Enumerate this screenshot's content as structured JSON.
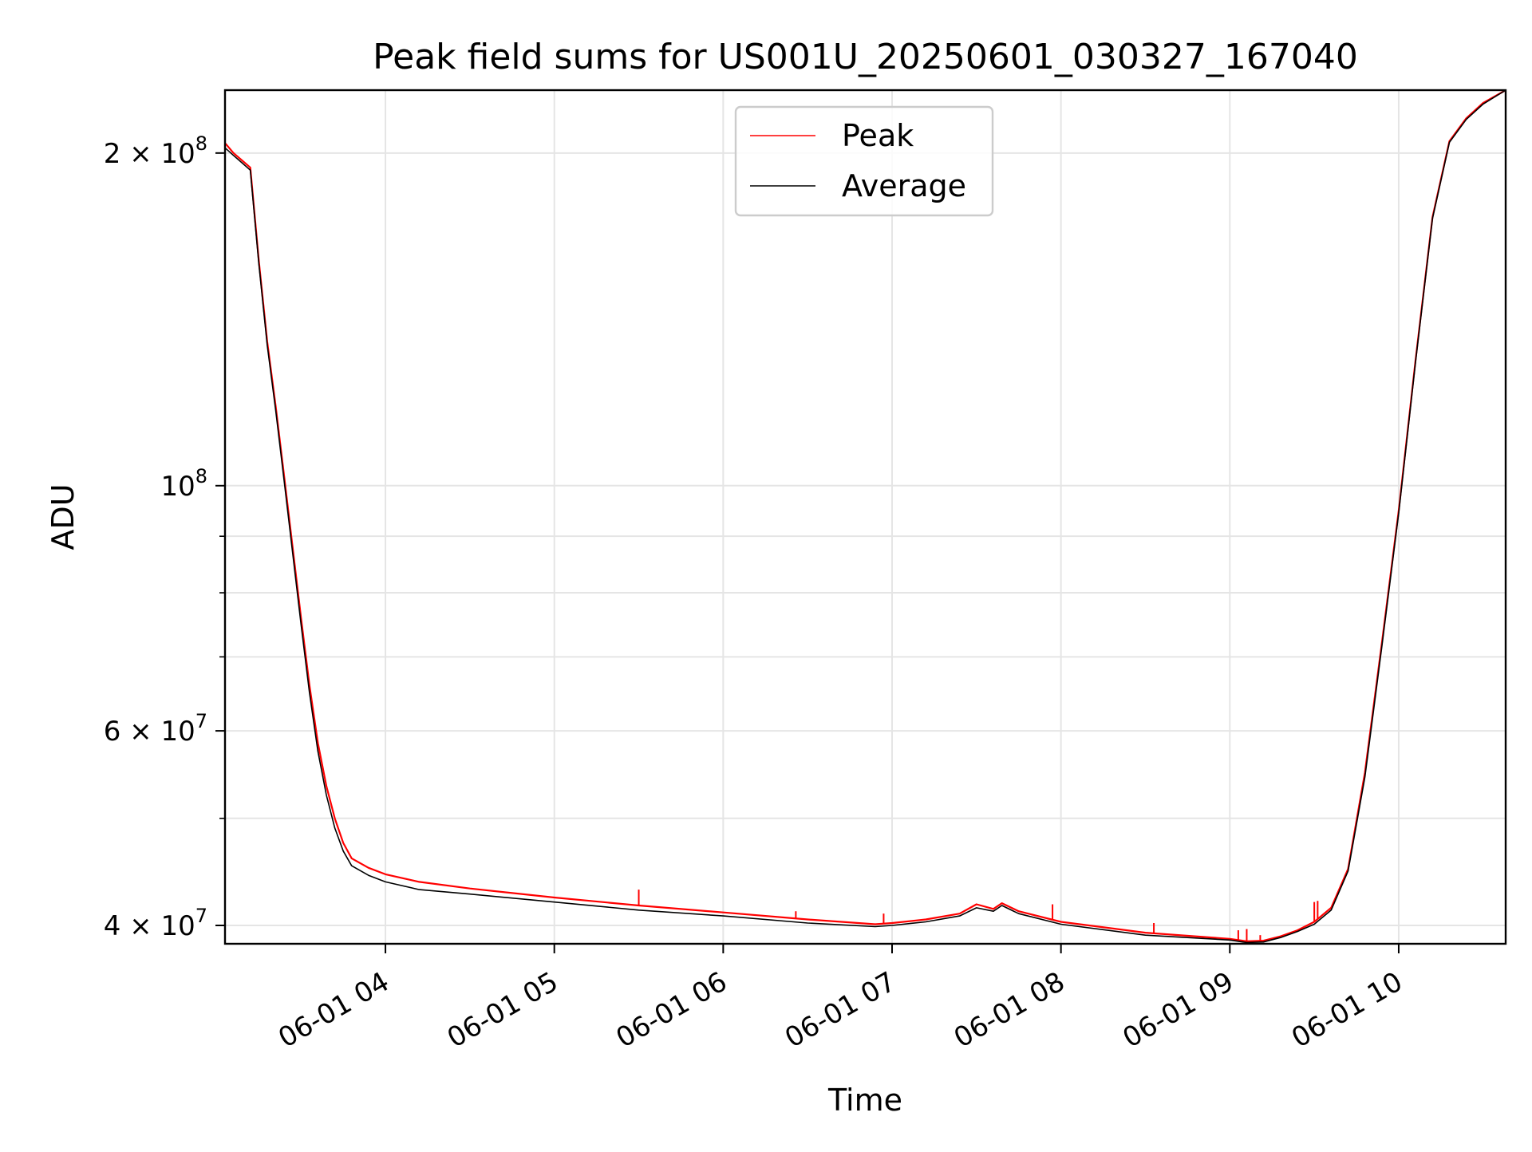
{
  "chart_data": {
    "type": "line",
    "title": "Peak field sums for US001U_20250601_030327_167040",
    "xlabel": "Time",
    "ylabel": "ADU",
    "x_axis": {
      "scale": "time",
      "unit": "hour",
      "range": [
        "2025-06-01 03:03",
        "2025-06-01 10:38"
      ],
      "ticks": [
        {
          "value": 4,
          "label": "06-01 04"
        },
        {
          "value": 5,
          "label": "06-01 05"
        },
        {
          "value": 6,
          "label": "06-01 06"
        },
        {
          "value": 7,
          "label": "06-01 07"
        },
        {
          "value": 8,
          "label": "06-01 08"
        },
        {
          "value": 9,
          "label": "06-01 09"
        },
        {
          "value": 10,
          "label": "06-01 10"
        }
      ]
    },
    "y_axis": {
      "scale": "log",
      "range": [
        38500000,
        228000000
      ],
      "major_ticks": [
        {
          "value": 40000000,
          "mant": "4 × 10",
          "exp": "7"
        },
        {
          "value": 60000000,
          "mant": "6 × 10",
          "exp": "7"
        },
        {
          "value": 100000000,
          "mant": "10",
          "exp": "8"
        },
        {
          "value": 200000000,
          "mant": "2 × 10",
          "exp": "8"
        }
      ],
      "minor_gridlines": [
        50000000,
        70000000,
        80000000,
        90000000
      ]
    },
    "grid": true,
    "legend": {
      "position": "top-center",
      "entries": [
        "Peak",
        "Average"
      ]
    },
    "series": [
      {
        "name": "Peak",
        "color": "#ff0000",
        "points": [
          [
            3.053,
            204000000
          ],
          [
            3.1,
            200000000
          ],
          [
            3.15,
            197000000
          ],
          [
            3.2,
            194000000
          ],
          [
            3.25,
            160000000
          ],
          [
            3.3,
            135000000
          ],
          [
            3.35,
            118000000
          ],
          [
            3.4,
            102000000
          ],
          [
            3.45,
            88000000
          ],
          [
            3.5,
            76000000
          ],
          [
            3.55,
            66000000
          ],
          [
            3.6,
            58500000
          ],
          [
            3.65,
            53500000
          ],
          [
            3.7,
            50000000
          ],
          [
            3.75,
            47500000
          ],
          [
            3.8,
            46000000
          ],
          [
            3.9,
            45100000
          ],
          [
            4.0,
            44500000
          ],
          [
            4.2,
            43800000
          ],
          [
            4.5,
            43200000
          ],
          [
            5.0,
            42400000
          ],
          [
            5.5,
            41700000
          ],
          [
            6.0,
            41100000
          ],
          [
            6.5,
            40500000
          ],
          [
            6.9,
            40100000
          ],
          [
            7.0,
            40200000
          ],
          [
            7.2,
            40500000
          ],
          [
            7.4,
            41000000
          ],
          [
            7.5,
            41800000
          ],
          [
            7.6,
            41400000
          ],
          [
            7.65,
            41900000
          ],
          [
            7.75,
            41200000
          ],
          [
            8.0,
            40300000
          ],
          [
            8.5,
            39400000
          ],
          [
            9.0,
            38900000
          ],
          [
            9.1,
            38700000
          ],
          [
            9.2,
            38750000
          ],
          [
            9.3,
            39100000
          ],
          [
            9.4,
            39600000
          ],
          [
            9.5,
            40300000
          ],
          [
            9.6,
            41500000
          ],
          [
            9.7,
            45000000
          ],
          [
            9.8,
            55000000
          ],
          [
            9.9,
            72000000
          ],
          [
            10.0,
            95000000
          ],
          [
            10.1,
            130000000
          ],
          [
            10.2,
            175000000
          ],
          [
            10.3,
            205000000
          ],
          [
            10.4,
            215000000
          ],
          [
            10.5,
            222000000
          ],
          [
            10.634,
            228000000
          ]
        ],
        "spikes": [
          [
            5.5,
            43100000
          ],
          [
            6.43,
            41200000
          ],
          [
            6.95,
            41000000
          ],
          [
            7.95,
            41800000
          ],
          [
            8.55,
            40200000
          ],
          [
            9.05,
            39600000
          ],
          [
            9.1,
            39700000
          ],
          [
            9.18,
            39200000
          ],
          [
            9.5,
            42000000
          ],
          [
            9.52,
            42100000
          ]
        ]
      },
      {
        "name": "Average",
        "color": "#000000",
        "points": [
          [
            3.053,
            202000000
          ],
          [
            3.1,
            199000000
          ],
          [
            3.15,
            196000000
          ],
          [
            3.2,
            193000000
          ],
          [
            3.25,
            159000000
          ],
          [
            3.3,
            134000000
          ],
          [
            3.35,
            117000000
          ],
          [
            3.4,
            101000000
          ],
          [
            3.45,
            87000000
          ],
          [
            3.5,
            75000000
          ],
          [
            3.55,
            65000000
          ],
          [
            3.6,
            57500000
          ],
          [
            3.65,
            52500000
          ],
          [
            3.7,
            49000000
          ],
          [
            3.75,
            46700000
          ],
          [
            3.8,
            45300000
          ],
          [
            3.9,
            44400000
          ],
          [
            4.0,
            43800000
          ],
          [
            4.2,
            43100000
          ],
          [
            4.5,
            42700000
          ],
          [
            5.0,
            42000000
          ],
          [
            5.5,
            41300000
          ],
          [
            6.0,
            40800000
          ],
          [
            6.5,
            40200000
          ],
          [
            6.9,
            39900000
          ],
          [
            7.0,
            40000000
          ],
          [
            7.2,
            40300000
          ],
          [
            7.4,
            40800000
          ],
          [
            7.5,
            41500000
          ],
          [
            7.6,
            41200000
          ],
          [
            7.65,
            41700000
          ],
          [
            7.75,
            41000000
          ],
          [
            8.0,
            40100000
          ],
          [
            8.5,
            39200000
          ],
          [
            9.0,
            38800000
          ],
          [
            9.1,
            38600000
          ],
          [
            9.2,
            38650000
          ],
          [
            9.3,
            39000000
          ],
          [
            9.4,
            39500000
          ],
          [
            9.5,
            40100000
          ],
          [
            9.6,
            41300000
          ],
          [
            9.7,
            44800000
          ],
          [
            9.8,
            54500000
          ],
          [
            9.9,
            71500000
          ],
          [
            10.0,
            94500000
          ],
          [
            10.1,
            129500000
          ],
          [
            10.2,
            174500000
          ],
          [
            10.3,
            204500000
          ],
          [
            10.4,
            214500000
          ],
          [
            10.5,
            221500000
          ],
          [
            10.634,
            228000000
          ]
        ]
      }
    ]
  }
}
